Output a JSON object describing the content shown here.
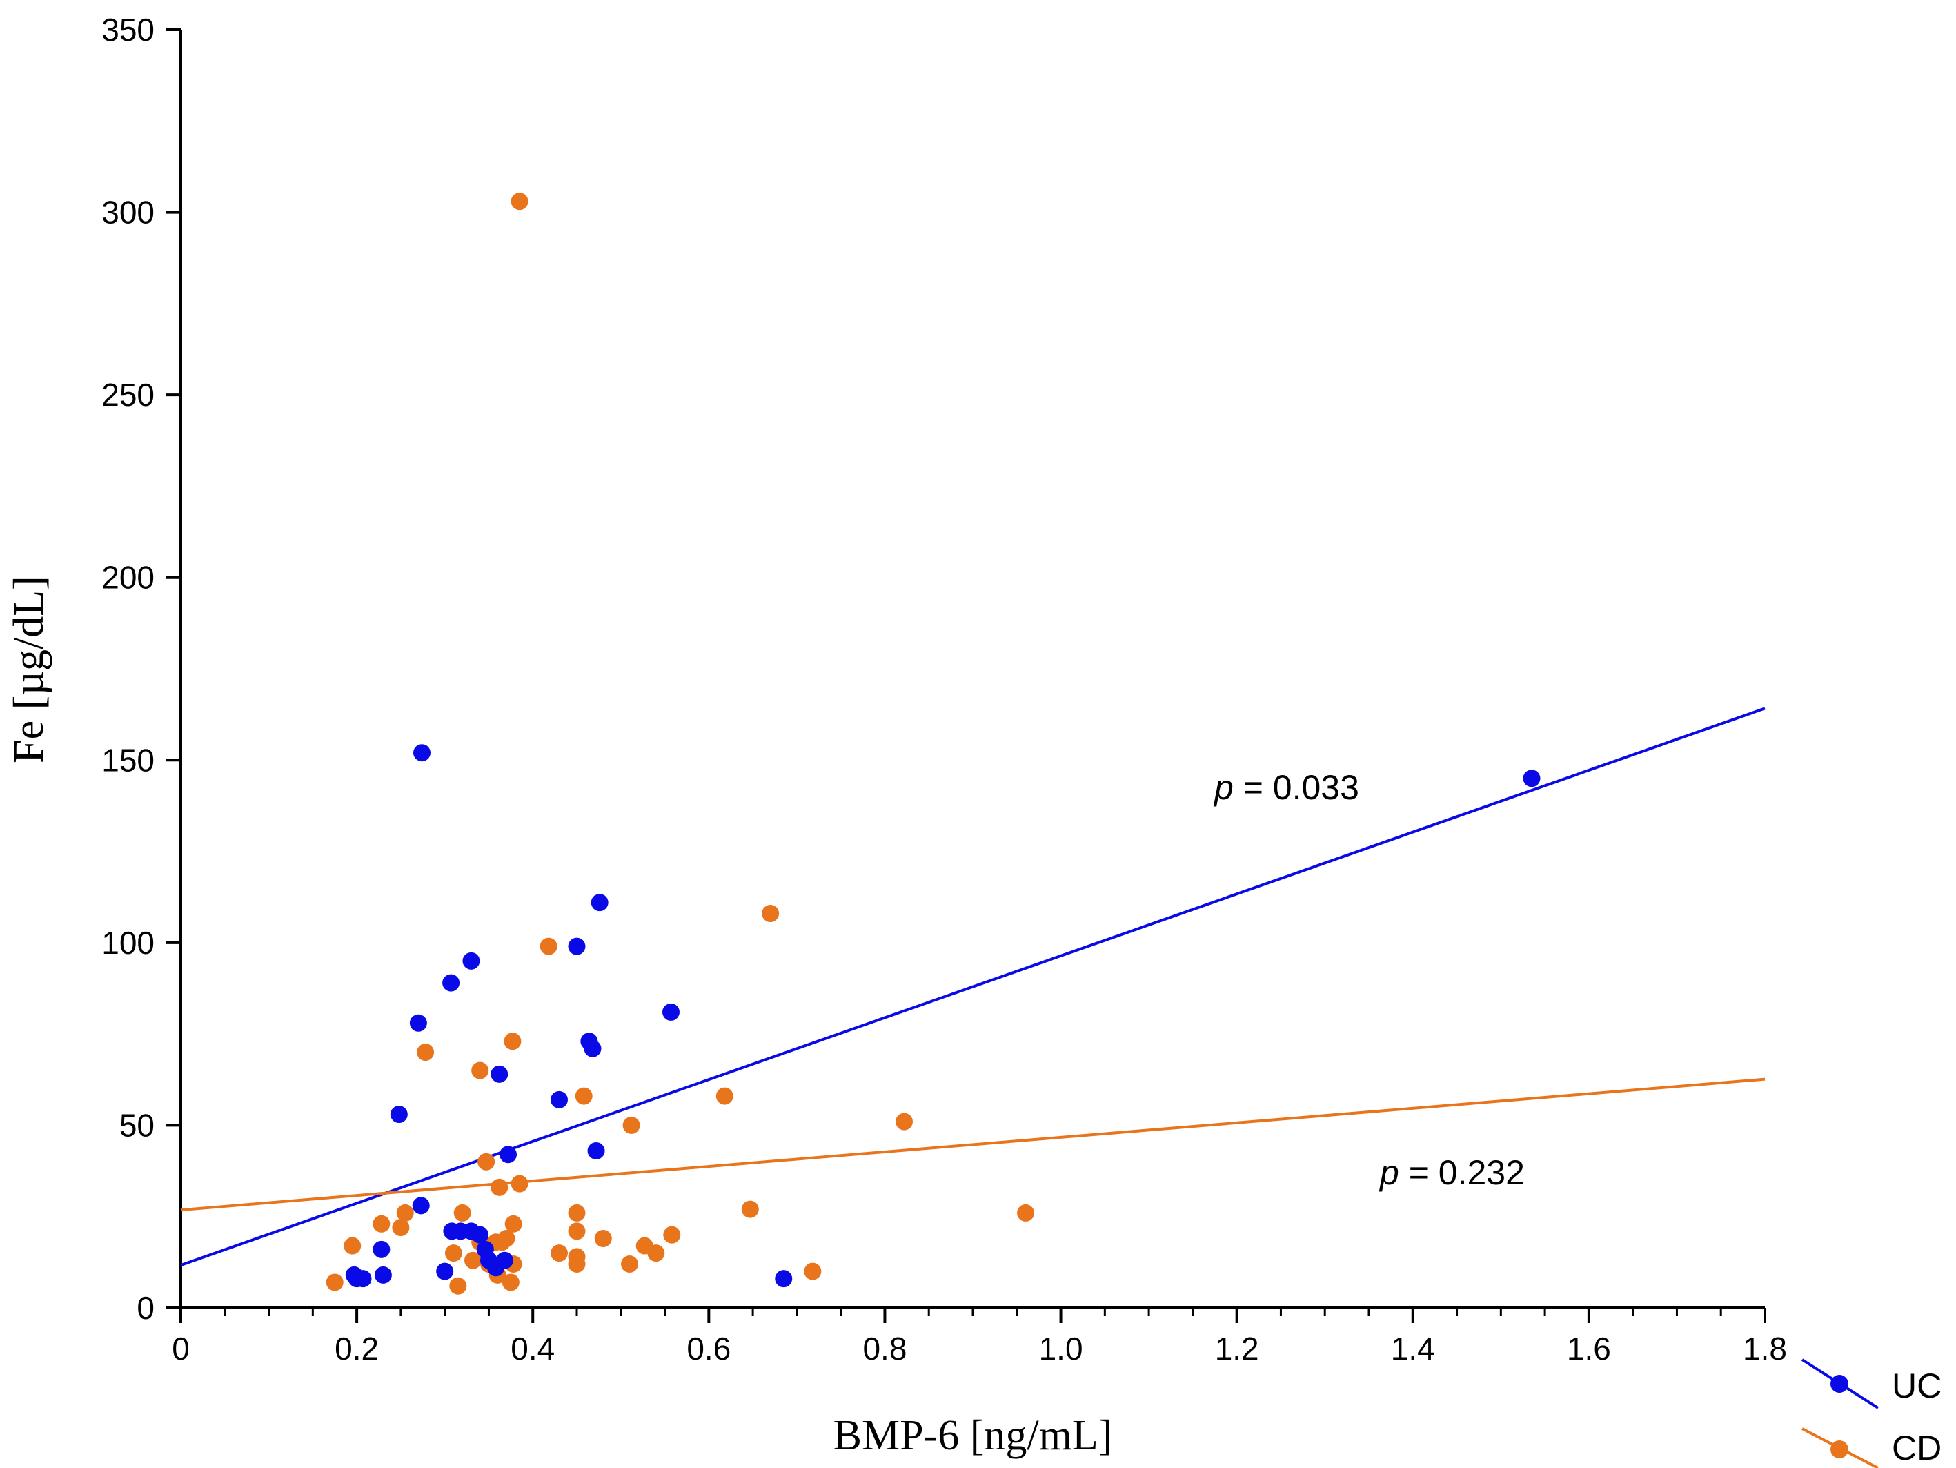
{
  "chart_data": {
    "type": "scatter",
    "title": "",
    "xlabel": "BMP-6 [ng/mL]",
    "ylabel": "Fe [µg/dL]",
    "xlim": [
      0,
      1.8
    ],
    "ylim": [
      0,
      350
    ],
    "x_ticks": [
      "0",
      "0.2",
      "0.4",
      "0.6",
      "0.8",
      "1.0",
      "1.2",
      "1.4",
      "1.6",
      "1.8"
    ],
    "y_ticks": [
      "0",
      "50",
      "100",
      "150",
      "200",
      "250",
      "300",
      "350"
    ],
    "grid": false,
    "legend_position": "bottom-right",
    "series": [
      {
        "name": "UC",
        "color": "#0a0ae6",
        "points": [
          [
            0.197,
            9
          ],
          [
            0.2,
            8
          ],
          [
            0.207,
            8
          ],
          [
            0.228,
            16
          ],
          [
            0.23,
            9
          ],
          [
            0.248,
            53
          ],
          [
            0.27,
            78
          ],
          [
            0.273,
            28
          ],
          [
            0.274,
            152
          ],
          [
            0.3,
            10
          ],
          [
            0.307,
            89
          ],
          [
            0.308,
            21
          ],
          [
            0.318,
            21
          ],
          [
            0.33,
            95
          ],
          [
            0.33,
            21
          ],
          [
            0.34,
            20
          ],
          [
            0.346,
            16
          ],
          [
            0.35,
            13
          ],
          [
            0.358,
            11
          ],
          [
            0.362,
            64
          ],
          [
            0.368,
            13
          ],
          [
            0.372,
            42
          ],
          [
            0.43,
            57
          ],
          [
            0.45,
            99
          ],
          [
            0.464,
            73
          ],
          [
            0.468,
            71
          ],
          [
            0.472,
            43
          ],
          [
            0.476,
            111
          ],
          [
            0.557,
            81
          ],
          [
            0.685,
            8
          ],
          [
            1.535,
            145
          ]
        ],
        "fit": {
          "intercept": 11.7,
          "slope": 84.7,
          "label": "p = 0.033",
          "p_symbol": "p",
          "p_rest": " = 0.033"
        }
      },
      {
        "name": "CD",
        "color": "#e8741c",
        "points": [
          [
            0.175,
            7
          ],
          [
            0.195,
            17
          ],
          [
            0.228,
            23
          ],
          [
            0.25,
            22
          ],
          [
            0.255,
            26
          ],
          [
            0.278,
            70
          ],
          [
            0.31,
            15
          ],
          [
            0.315,
            6
          ],
          [
            0.32,
            26
          ],
          [
            0.332,
            13
          ],
          [
            0.34,
            65
          ],
          [
            0.34,
            18
          ],
          [
            0.347,
            40
          ],
          [
            0.35,
            12
          ],
          [
            0.358,
            18
          ],
          [
            0.36,
            9
          ],
          [
            0.362,
            33
          ],
          [
            0.365,
            18
          ],
          [
            0.37,
            19
          ],
          [
            0.375,
            7
          ],
          [
            0.377,
            73
          ],
          [
            0.378,
            12
          ],
          [
            0.378,
            23
          ],
          [
            0.385,
            34
          ],
          [
            0.385,
            303
          ],
          [
            0.418,
            99
          ],
          [
            0.43,
            15
          ],
          [
            0.45,
            26
          ],
          [
            0.45,
            12
          ],
          [
            0.45,
            21
          ],
          [
            0.45,
            14
          ],
          [
            0.458,
            58
          ],
          [
            0.48,
            19
          ],
          [
            0.51,
            12
          ],
          [
            0.512,
            50
          ],
          [
            0.527,
            17
          ],
          [
            0.54,
            15
          ],
          [
            0.558,
            20
          ],
          [
            0.618,
            58
          ],
          [
            0.647,
            27
          ],
          [
            0.67,
            108
          ],
          [
            0.718,
            10
          ],
          [
            0.822,
            51
          ],
          [
            0.96,
            26
          ]
        ],
        "fit": {
          "intercept": 26.8,
          "slope": 19.9,
          "label": "p = 0.232",
          "p_symbol": "p",
          "p_rest": " = 0.232"
        }
      }
    ]
  }
}
